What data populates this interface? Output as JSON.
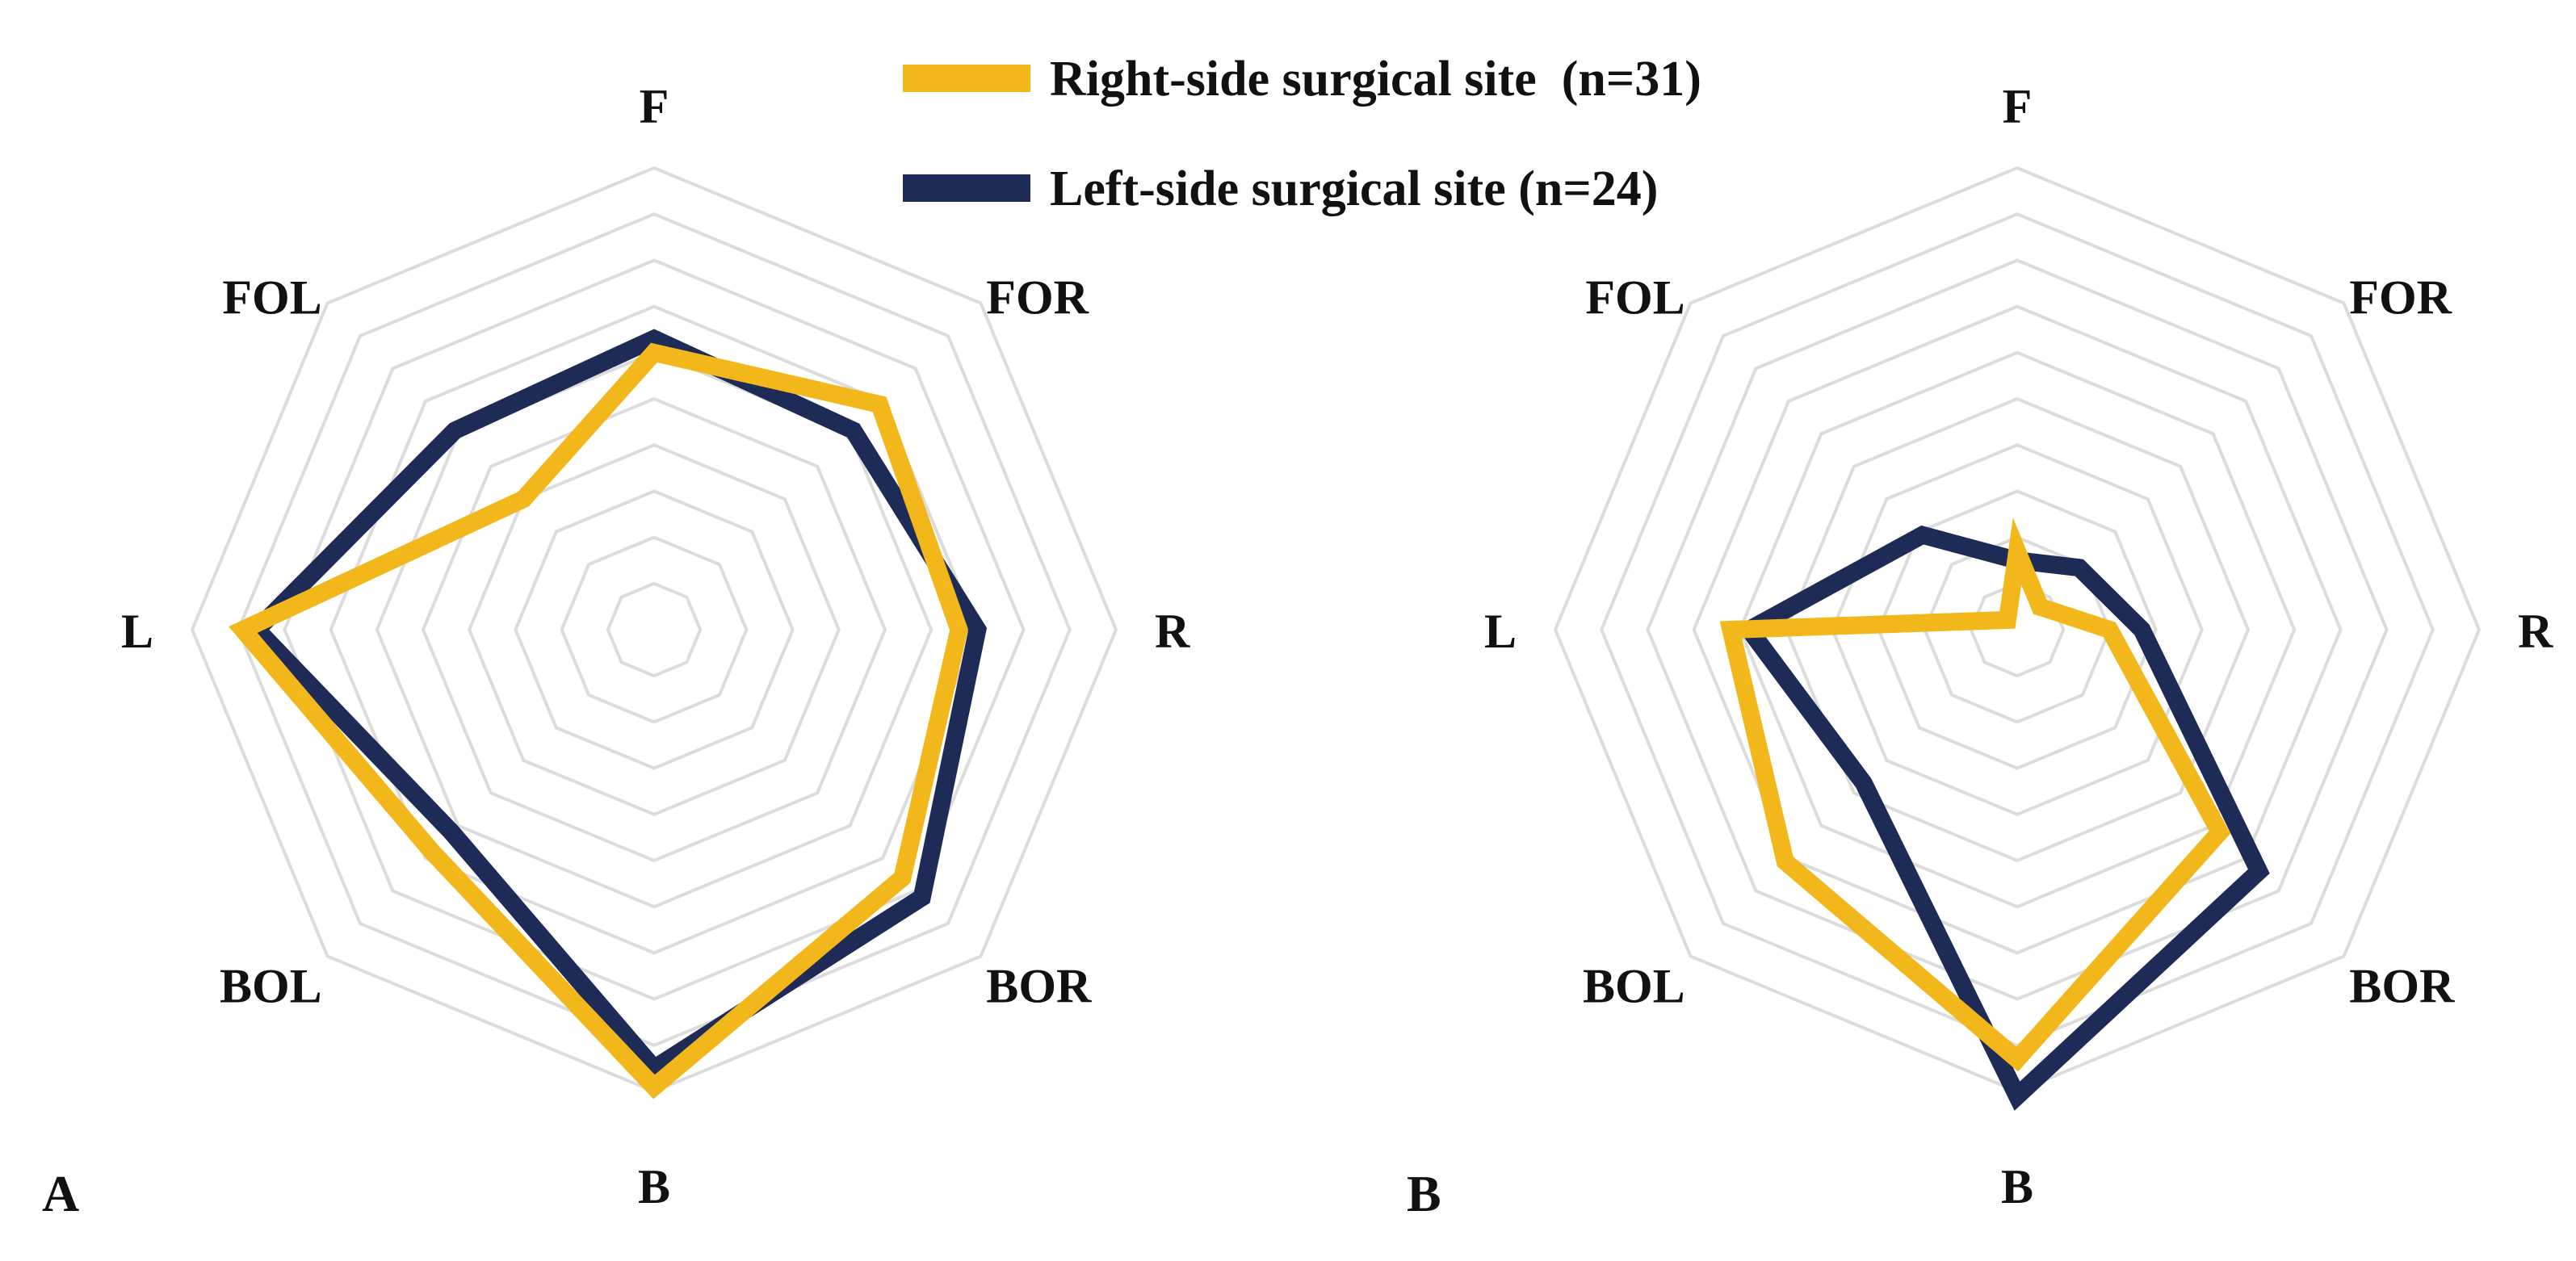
{
  "legend": {
    "entries": [
      {
        "label": "Right-side surgical site  (n=31)",
        "color": "#F2B71B"
      },
      {
        "label": "Left-side surgical site (n=24)",
        "color": "#1E2B57"
      }
    ]
  },
  "chart_data": [
    {
      "type": "radar",
      "panel_label": "A",
      "axes": [
        "F",
        "FOR",
        "R",
        "BOR",
        "B",
        "BOL",
        "L",
        "FOL"
      ],
      "rmax": 10,
      "grid_levels": 10,
      "grid": true,
      "series": [
        {
          "name": "Left-side surgical site (n=24)",
          "color": "#1E2B57",
          "values": [
            6.3,
            6.1,
            7.0,
            8.2,
            9.5,
            6.2,
            8.6,
            6.1
          ]
        },
        {
          "name": "Right-side surgical site  (n=31)",
          "color": "#F2B71B",
          "values": [
            6.0,
            6.9,
            6.6,
            7.6,
            9.9,
            6.8,
            8.9,
            4.0
          ]
        }
      ]
    },
    {
      "type": "radar",
      "panel_label": "B",
      "axes": [
        "F",
        "FOR",
        "R",
        "BOR",
        "B",
        "BOL",
        "L",
        "FOL"
      ],
      "rmax": 10,
      "grid_levels": 10,
      "grid": true,
      "series": [
        {
          "name": "Left-side surgical site (n=24)",
          "color": "#1E2B57",
          "values": [
            1.5,
            1.9,
            2.7,
            7.4,
            10.1,
            4.7,
            5.8,
            2.9
          ]
        },
        {
          "name": "Right-side surgical site  (n=31)",
          "color": "#F2B71B",
          "values": [
            1.7,
            0.7,
            2.0,
            6.2,
            9.3,
            7.1,
            6.2,
            0.3
          ]
        }
      ]
    }
  ]
}
